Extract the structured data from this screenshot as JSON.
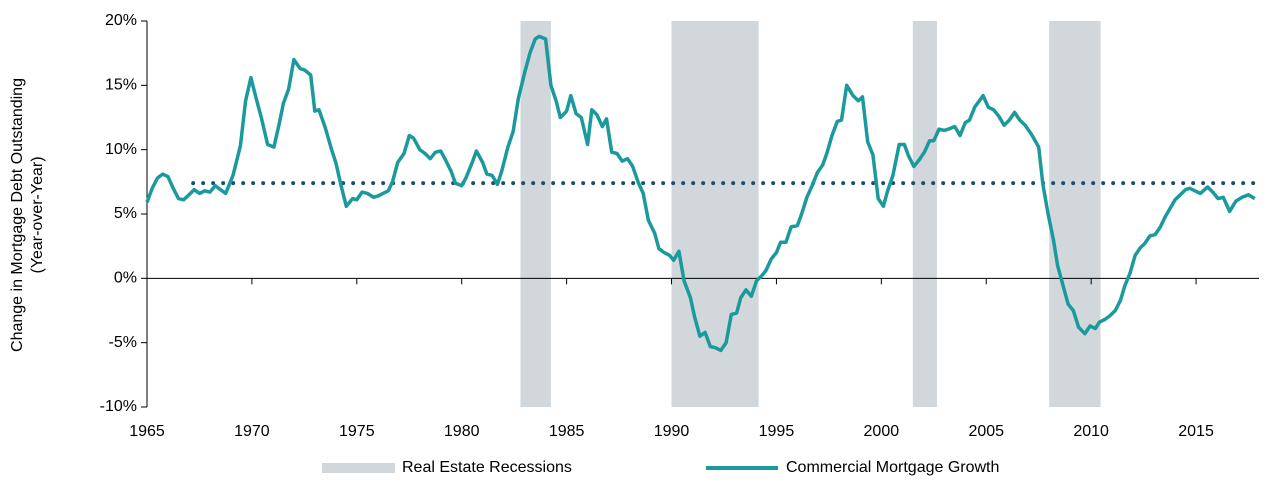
{
  "chart_data": {
    "type": "line",
    "ylabel": [
      "Change in Mortgage Debt Outstanding",
      "(Year-over-Year)"
    ],
    "x": [
      1965.0,
      1965.25,
      1965.5,
      1965.75,
      1966.0,
      1966.25,
      1966.5,
      1966.75,
      1967.0,
      1967.25,
      1967.5,
      1967.75,
      1968.0,
      1968.25,
      1968.5,
      1968.75,
      1969.1,
      1969.45,
      1969.7,
      1969.95,
      1970.2,
      1970.45,
      1970.75,
      1971.05,
      1971.3,
      1971.5,
      1971.75,
      1972.0,
      1972.3,
      1972.5,
      1972.8,
      1973.0,
      1973.2,
      1973.5,
      1973.8,
      1974.0,
      1974.25,
      1974.5,
      1974.8,
      1975.0,
      1975.25,
      1975.5,
      1975.8,
      1976.0,
      1976.25,
      1976.5,
      1976.7,
      1976.95,
      1977.25,
      1977.5,
      1977.7,
      1978.0,
      1978.25,
      1978.5,
      1978.75,
      1979.0,
      1979.2,
      1979.5,
      1979.7,
      1980.0,
      1980.2,
      1980.5,
      1980.7,
      1981.0,
      1981.2,
      1981.45,
      1981.7,
      1981.9,
      1982.2,
      1982.45,
      1982.7,
      1983.0,
      1983.25,
      1983.5,
      1983.7,
      1984.0,
      1984.25,
      1984.5,
      1984.7,
      1985.0,
      1985.2,
      1985.45,
      1985.7,
      1986.0,
      1986.2,
      1986.45,
      1986.7,
      1986.9,
      1987.15,
      1987.4,
      1987.65,
      1987.9,
      1988.15,
      1988.4,
      1988.65,
      1988.9,
      1989.2,
      1989.4,
      1989.65,
      1989.9,
      1990.1,
      1990.35,
      1990.6,
      1990.9,
      1991.1,
      1991.35,
      1991.6,
      1991.85,
      1992.1,
      1992.35,
      1992.6,
      1992.85,
      1993.1,
      1993.3,
      1993.55,
      1993.8,
      1994.05,
      1994.3,
      1994.5,
      1994.75,
      1995.0,
      1995.2,
      1995.45,
      1995.7,
      1996.0,
      1996.2,
      1996.45,
      1996.7,
      1996.95,
      1997.2,
      1997.4,
      1997.65,
      1997.9,
      1998.1,
      1998.35,
      1998.65,
      1998.9,
      1999.1,
      1999.35,
      1999.6,
      1999.85,
      2000.1,
      2000.3,
      2000.55,
      2000.85,
      2001.1,
      2001.3,
      2001.55,
      2001.8,
      2002.05,
      2002.3,
      2002.5,
      2002.75,
      2003.0,
      2003.2,
      2003.5,
      2003.75,
      2004.0,
      2004.2,
      2004.45,
      2004.85,
      2005.1,
      2005.35,
      2005.6,
      2005.85,
      2006.1,
      2006.35,
      2006.6,
      2006.85,
      2007.15,
      2007.5,
      2007.7,
      2007.95,
      2008.2,
      2008.4,
      2008.9,
      2009.15,
      2009.4,
      2009.7,
      2009.95,
      2010.2,
      2010.4,
      2010.65,
      2010.9,
      2011.15,
      2011.4,
      2011.6,
      2011.85,
      2012.1,
      2012.35,
      2012.55,
      2012.8,
      2013.05,
      2013.3,
      2013.5,
      2013.75,
      2014.0,
      2014.25,
      2014.5,
      2014.7,
      2015.2,
      2015.55,
      2015.8,
      2016.05,
      2016.3,
      2016.6,
      2016.9,
      2017.2,
      2017.5,
      2017.8
    ],
    "series": [
      {
        "name": "Commercial Mortgage Growth",
        "color": "#1a9a9c",
        "values": [
          5.9,
          7.0,
          7.8,
          8.1,
          7.9,
          7.0,
          6.2,
          6.1,
          6.5,
          6.9,
          6.6,
          6.8,
          6.7,
          7.2,
          6.9,
          6.6,
          8.0,
          10.3,
          13.8,
          15.6,
          14.0,
          12.5,
          10.4,
          10.2,
          12.0,
          13.6,
          14.7,
          17.0,
          16.3,
          16.2,
          15.8,
          13.0,
          13.1,
          11.7,
          10.0,
          9.0,
          7.2,
          5.6,
          6.2,
          6.1,
          6.7,
          6.6,
          6.3,
          6.4,
          6.6,
          6.8,
          7.5,
          9.0,
          9.7,
          11.1,
          10.9,
          10.0,
          9.7,
          9.3,
          9.8,
          9.9,
          9.3,
          8.3,
          7.4,
          7.2,
          7.8,
          9.0,
          9.9,
          9.0,
          8.1,
          8.0,
          7.3,
          8.3,
          10.2,
          11.4,
          14.0,
          16.0,
          17.5,
          18.6,
          18.8,
          18.6,
          15.0,
          13.8,
          12.5,
          13.0,
          14.2,
          12.8,
          12.5,
          10.4,
          13.1,
          12.7,
          11.8,
          12.4,
          9.8,
          9.7,
          9.1,
          9.3,
          8.7,
          7.5,
          6.6,
          4.5,
          3.5,
          2.3,
          2.0,
          1.8,
          1.4,
          2.1,
          -0.2,
          -1.5,
          -3.0,
          -4.5,
          -4.2,
          -5.3,
          -5.4,
          -5.6,
          -5.0,
          -2.8,
          -2.7,
          -1.5,
          -0.9,
          -1.4,
          -0.2,
          0.2,
          0.6,
          1.5,
          2.0,
          2.8,
          2.8,
          4.0,
          4.1,
          5.0,
          6.3,
          7.2,
          8.2,
          8.8,
          9.7,
          11.1,
          12.2,
          12.3,
          15.0,
          14.2,
          13.8,
          14.1,
          10.6,
          9.6,
          6.2,
          5.6,
          6.8,
          8.0,
          10.4,
          10.4,
          9.5,
          8.7,
          9.2,
          9.8,
          10.7,
          10.7,
          11.6,
          11.5,
          11.6,
          11.8,
          11.1,
          12.1,
          12.3,
          13.3,
          14.2,
          13.3,
          13.1,
          12.6,
          11.9,
          12.3,
          12.9,
          12.3,
          11.9,
          11.2,
          10.2,
          7.3,
          5.0,
          3.0,
          1.0,
          -2.0,
          -2.5,
          -3.8,
          -4.3,
          -3.7,
          -3.9,
          -3.4,
          -3.2,
          -2.9,
          -2.5,
          -1.7,
          -0.6,
          0.4,
          1.8,
          2.4,
          2.7,
          3.3,
          3.4,
          4.0,
          4.7,
          5.4,
          6.1,
          6.5,
          6.9,
          7.0,
          6.6,
          7.1,
          6.7,
          6.2,
          6.3,
          5.2,
          6.0,
          6.3,
          6.5,
          6.2
        ]
      }
    ],
    "bands": {
      "name": "Real Estate Recessions",
      "color": "#d1d7da",
      "ranges": [
        [
          1982.8,
          1984.25
        ],
        [
          1990.0,
          1994.15
        ],
        [
          2001.5,
          2002.65
        ],
        [
          2008.0,
          2010.45
        ]
      ]
    },
    "reference_line": {
      "value": 7.4,
      "x": [
        1967.2,
        2018
      ],
      "color": "#1f4e6b"
    },
    "xlim": [
      1965,
      2018
    ],
    "xticks": [
      1965,
      1970,
      1975,
      1980,
      1985,
      1990,
      1995,
      2000,
      2005,
      2010,
      2015
    ],
    "ylim": [
      -10,
      20
    ],
    "yticks": [
      {
        "value": -10,
        "label": "-10%"
      },
      {
        "value": -5,
        "label": "-5%"
      },
      {
        "value": 0,
        "label": "0%"
      },
      {
        "value": 5,
        "label": "5%"
      },
      {
        "value": 10,
        "label": "10%"
      },
      {
        "value": 15,
        "label": "15%"
      },
      {
        "value": 20,
        "label": "20%"
      }
    ]
  }
}
